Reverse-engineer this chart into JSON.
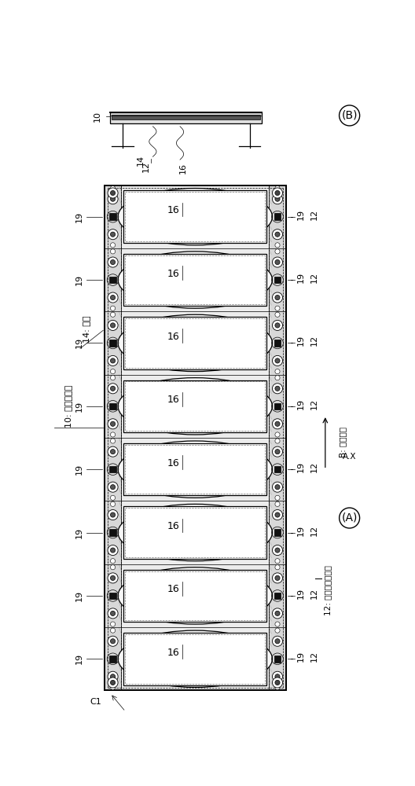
{
  "bg_color": "#ffffff",
  "line_color": "#000000",
  "label_10_text": "10: 偏振器单元",
  "label_14_text": "14: 框架",
  "label_12_text": "12: 单位偏振器单元",
  "label_B_marker": "(B)",
  "label_A_marker": "(A)",
  "label_AX": "A.X",
  "label_B_dir": "B: 排列方向",
  "num_units": 8,
  "fig_w": 5.28,
  "fig_h": 10.0
}
